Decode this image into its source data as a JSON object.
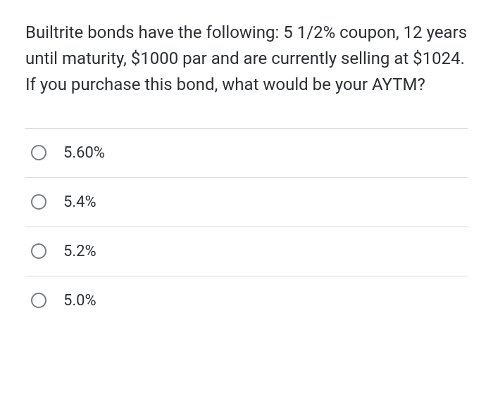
{
  "question": {
    "text": "Builtrite bonds have the following: 5 1/2% coupon, 12 years until maturity, $1000 par and are currently selling at $1024.  If you purchase this bond, what would be your AYTM?"
  },
  "options": [
    {
      "label": "5.60%"
    },
    {
      "label": "5.4%"
    },
    {
      "label": "5.2%"
    },
    {
      "label": "5.0%"
    }
  ],
  "styles": {
    "text_color": "#2b2e33",
    "divider_color": "#d8d9db",
    "radio_border_color": "#7a7d82",
    "background_color": "#ffffff",
    "question_fontsize": 24,
    "option_fontsize": 22
  }
}
